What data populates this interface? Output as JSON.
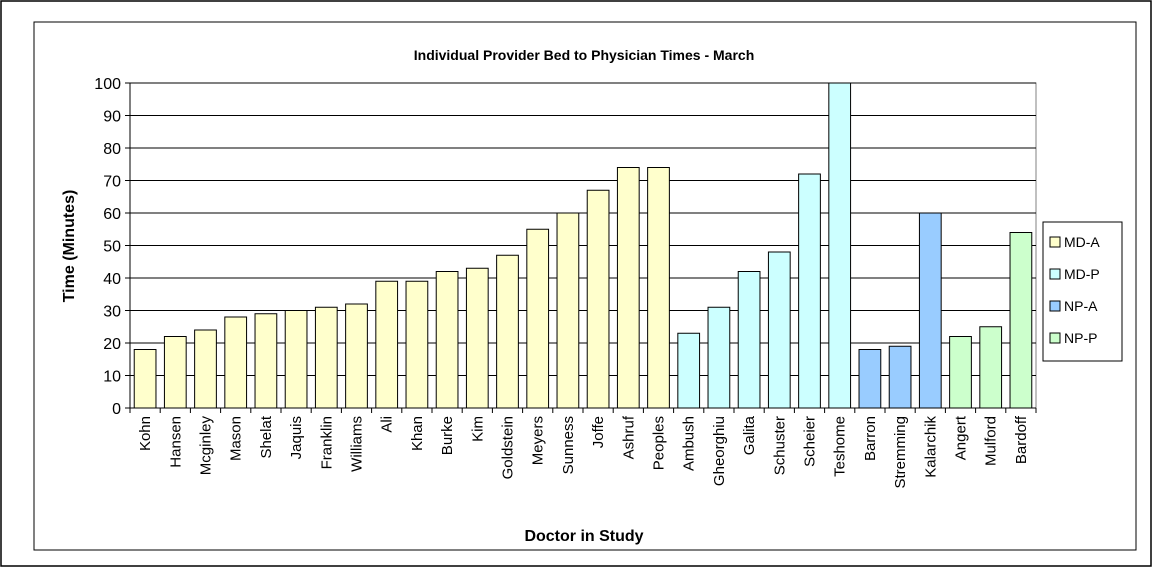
{
  "chart_data": {
    "type": "bar",
    "title": "Individual Provider Bed to Physician Times - March",
    "xlabel": "Doctor in Study",
    "ylabel": "Time (Minutes)",
    "ylim": [
      0,
      100
    ],
    "yticks": [
      0,
      10,
      20,
      30,
      40,
      50,
      60,
      70,
      80,
      90,
      100
    ],
    "grid": true,
    "legend_position": "right",
    "categories": [
      "Kohn",
      "Hansen",
      "Mcginley",
      "Mason",
      "Shelat",
      "Jaquis",
      "Franklin",
      "Williams",
      "Ali",
      "Khan",
      "Burke",
      "Kim",
      "Goldstein",
      "Meyers",
      "Sunness",
      "Joffe",
      "Ashruf",
      "Peoples",
      "Ambush",
      "Gheorghiu",
      "Galita",
      "Schuster",
      "Scheier",
      "Teshome",
      "Barron",
      "Stremming",
      "Kalarchik",
      "Angert",
      "Mulford",
      "Bardoff"
    ],
    "values": [
      18,
      22,
      24,
      28,
      29,
      30,
      31,
      32,
      39,
      39,
      42,
      43,
      47,
      55,
      60,
      67,
      74,
      74,
      23,
      31,
      42,
      48,
      72,
      100,
      18,
      19,
      60,
      22,
      25,
      54
    ],
    "groups": [
      "MD-A",
      "MD-A",
      "MD-A",
      "MD-A",
      "MD-A",
      "MD-A",
      "MD-A",
      "MD-A",
      "MD-A",
      "MD-A",
      "MD-A",
      "MD-A",
      "MD-A",
      "MD-A",
      "MD-A",
      "MD-A",
      "MD-A",
      "MD-A",
      "MD-P",
      "MD-P",
      "MD-P",
      "MD-P",
      "MD-P",
      "MD-P",
      "NP-A",
      "NP-A",
      "NP-A",
      "NP-P",
      "NP-P",
      "NP-P"
    ],
    "series": [
      {
        "name": "MD-A",
        "color": "#FFFFCC"
      },
      {
        "name": "MD-P",
        "color": "#CCFFFF"
      },
      {
        "name": "NP-A",
        "color": "#99CCFF"
      },
      {
        "name": "NP-P",
        "color": "#CCFFCC"
      }
    ]
  }
}
